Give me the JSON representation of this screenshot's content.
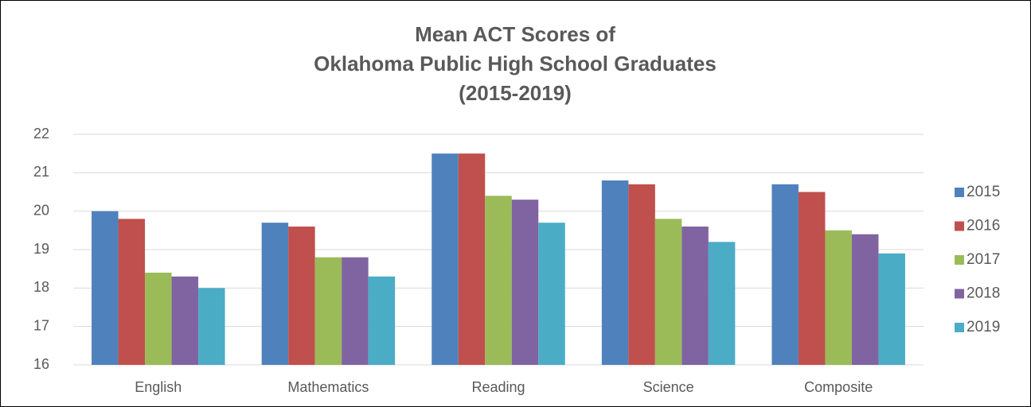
{
  "chart_data": {
    "type": "bar",
    "title": [
      "Mean ACT Scores of",
      "Oklahoma Public High School Graduates",
      "(2015-2019)"
    ],
    "categories": [
      "English",
      "Mathematics",
      "Reading",
      "Science",
      "Composite"
    ],
    "series": [
      {
        "name": "2015",
        "color": "#4f81bd",
        "values": [
          20.0,
          19.7,
          21.5,
          20.8,
          20.7
        ]
      },
      {
        "name": "2016",
        "color": "#c0504d",
        "values": [
          19.8,
          19.6,
          21.5,
          20.7,
          20.5
        ]
      },
      {
        "name": "2017",
        "color": "#9bbb59",
        "values": [
          18.4,
          18.8,
          20.4,
          19.8,
          19.5
        ]
      },
      {
        "name": "2018",
        "color": "#8064a2",
        "values": [
          18.3,
          18.8,
          20.3,
          19.6,
          19.4
        ]
      },
      {
        "name": "2019",
        "color": "#4bacc6",
        "values": [
          18.0,
          18.3,
          19.7,
          19.2,
          18.9
        ]
      }
    ],
    "ylim": [
      16,
      22
    ],
    "yticks": [
      16,
      17,
      18,
      19,
      20,
      21,
      22
    ],
    "grid": true,
    "legend": "right"
  }
}
